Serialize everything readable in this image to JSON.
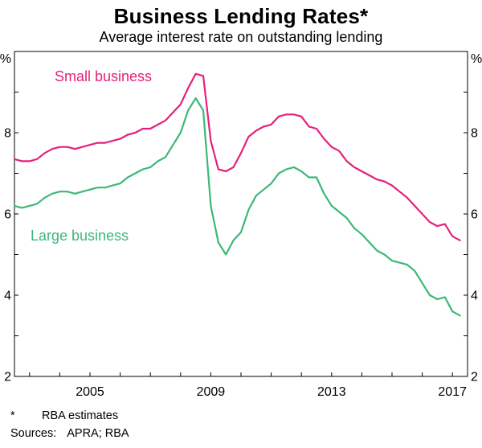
{
  "header": {
    "title": "Business Lending Rates*",
    "subtitle": "Average interest rate on outstanding lending"
  },
  "footer": {
    "footnote_marker": "*",
    "footnote": "RBA estimates",
    "sources_label": "Sources:",
    "sources": "APRA; RBA"
  },
  "chart_data": {
    "type": "line",
    "title": "Business Lending Rates*",
    "subtitle": "Average interest rate on outstanding lending",
    "unit": "%",
    "ylim": [
      2,
      10
    ],
    "yticks": [
      2,
      4,
      6,
      8
    ],
    "xlim": [
      2002.5,
      2017.5
    ],
    "xtick_labels": [
      2005,
      2009,
      2013,
      2017
    ],
    "grid": false,
    "legend_position": "inline-labels",
    "x": [
      2002.5,
      2002.75,
      2003,
      2003.25,
      2003.5,
      2003.75,
      2004,
      2004.25,
      2004.5,
      2004.75,
      2005,
      2005.25,
      2005.5,
      2005.75,
      2006,
      2006.25,
      2006.5,
      2006.75,
      2007,
      2007.25,
      2007.5,
      2007.75,
      2008,
      2008.25,
      2008.5,
      2008.75,
      2009,
      2009.25,
      2009.5,
      2009.75,
      2010,
      2010.25,
      2010.5,
      2010.75,
      2011,
      2011.25,
      2011.5,
      2011.75,
      2012,
      2012.25,
      2012.5,
      2012.75,
      2013,
      2013.25,
      2013.5,
      2013.75,
      2014,
      2014.25,
      2014.5,
      2014.75,
      2015,
      2015.25,
      2015.5,
      2015.75,
      2016,
      2016.25,
      2016.5,
      2016.75,
      2017,
      2017.25
    ],
    "series": [
      {
        "name": "Small business",
        "color": "#e4217c",
        "values": [
          7.35,
          7.3,
          7.3,
          7.35,
          7.5,
          7.6,
          7.65,
          7.65,
          7.6,
          7.65,
          7.7,
          7.75,
          7.75,
          7.8,
          7.85,
          7.95,
          8.0,
          8.1,
          8.1,
          8.2,
          8.3,
          8.5,
          8.7,
          9.1,
          9.45,
          9.4,
          7.8,
          7.1,
          7.05,
          7.15,
          7.5,
          7.9,
          8.05,
          8.15,
          8.2,
          8.4,
          8.45,
          8.45,
          8.4,
          8.15,
          8.1,
          7.85,
          7.65,
          7.55,
          7.3,
          7.15,
          7.05,
          6.95,
          6.85,
          6.8,
          6.7,
          6.55,
          6.4,
          6.2,
          6.0,
          5.8,
          5.7,
          5.75,
          5.45,
          5.35
        ]
      },
      {
        "name": "Large business",
        "color": "#3cb878",
        "values": [
          6.2,
          6.15,
          6.2,
          6.25,
          6.4,
          6.5,
          6.55,
          6.55,
          6.5,
          6.55,
          6.6,
          6.65,
          6.65,
          6.7,
          6.75,
          6.9,
          7.0,
          7.1,
          7.15,
          7.3,
          7.4,
          7.7,
          8.0,
          8.55,
          8.85,
          8.55,
          6.2,
          5.3,
          5.0,
          5.35,
          5.55,
          6.1,
          6.45,
          6.6,
          6.75,
          7.0,
          7.1,
          7.15,
          7.05,
          6.9,
          6.9,
          6.5,
          6.2,
          6.05,
          5.9,
          5.65,
          5.5,
          5.3,
          5.1,
          5.0,
          4.85,
          4.8,
          4.75,
          4.6,
          4.3,
          4.0,
          3.9,
          3.95,
          3.6,
          3.5
        ]
      }
    ]
  }
}
